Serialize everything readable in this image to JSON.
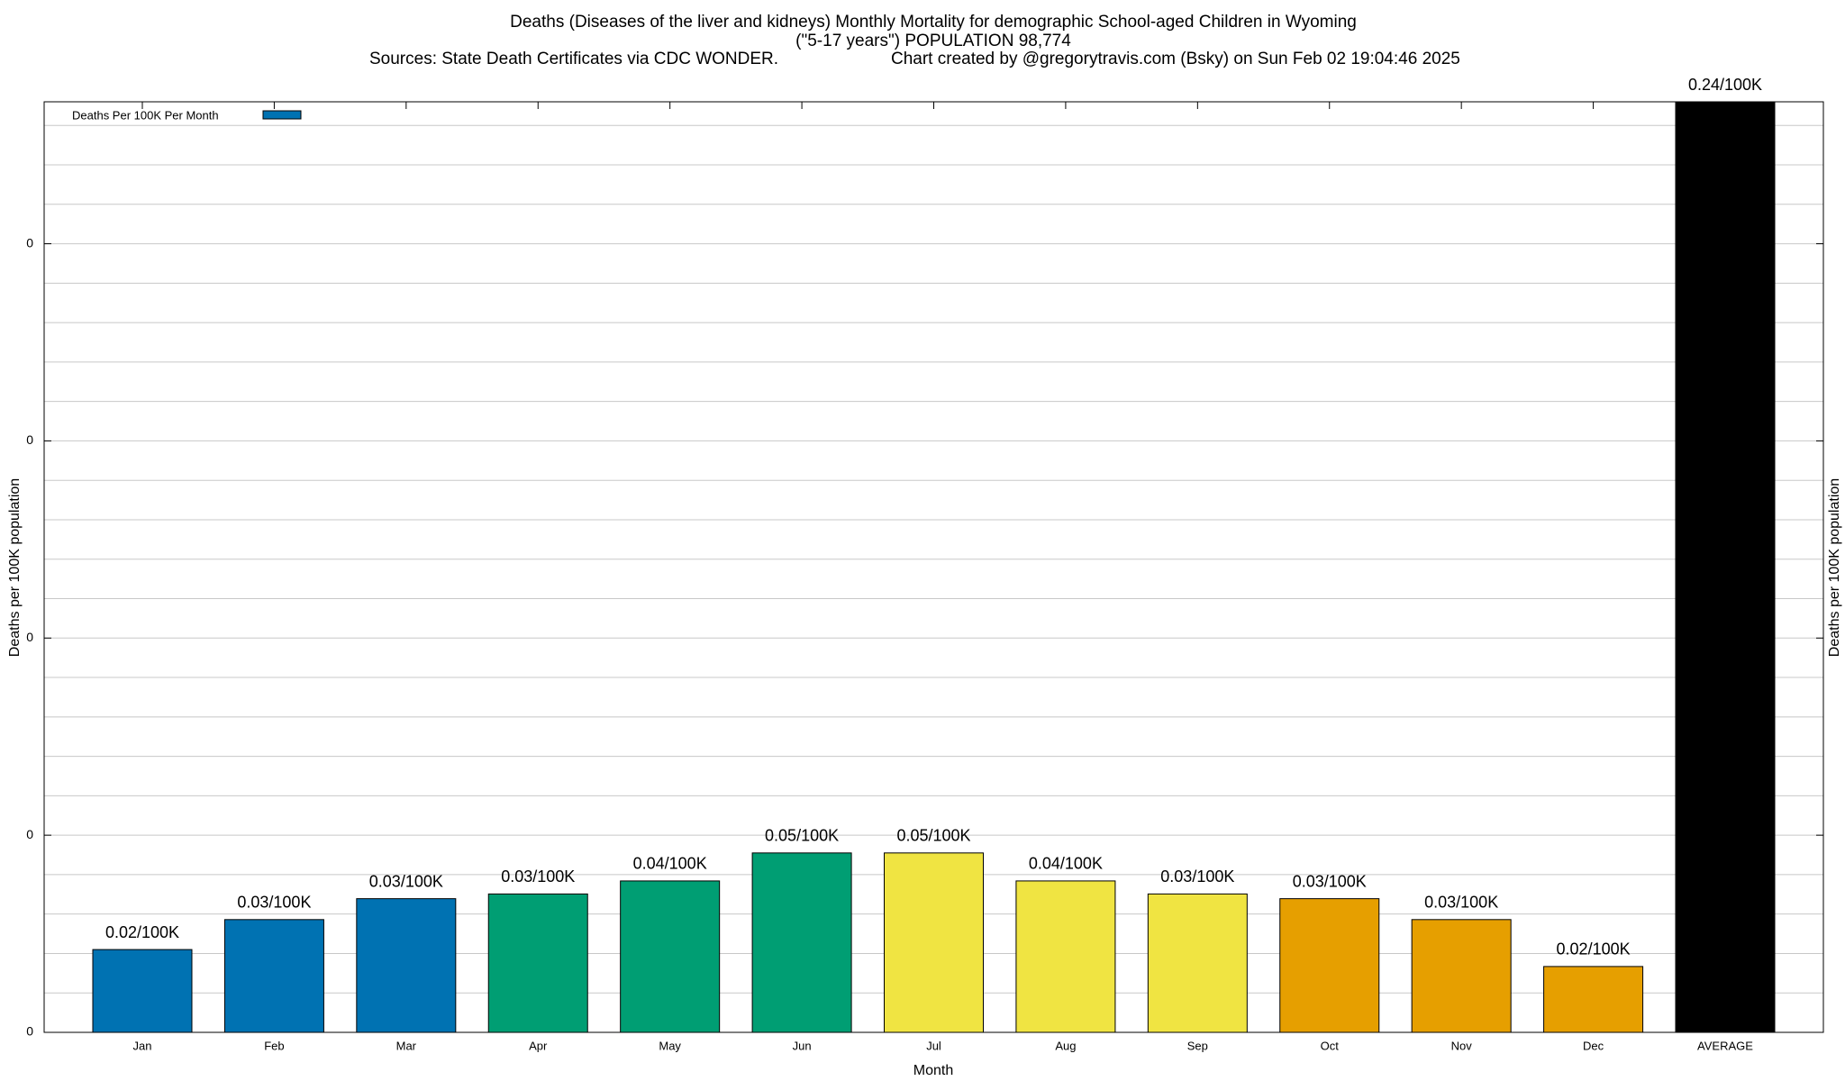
{
  "chart_data": {
    "type": "bar",
    "title": "Deaths (Diseases of the liver and kidneys) Monthly Mortality for demographic School-aged Children in Wyoming",
    "subtitle": "(\"5-17 years\") POPULATION 98,774",
    "sources": "Sources: State Death Certificates via CDC WONDER.",
    "credit": "Chart created by @gregorytravis.com (Bsky) on Sun Feb 02 19:04:46 2025",
    "x_label": "Month",
    "y_label": "Deaths per 100K population",
    "legend": "Deaths Per 100K Per Month",
    "legend_color": "#0072b2",
    "categories": [
      "Jan",
      "Feb",
      "Mar",
      "Apr",
      "May",
      "Jun",
      "Jul",
      "Aug",
      "Sep",
      "Oct",
      "Nov",
      "Dec",
      "AVERAGE"
    ],
    "values": [
      0.021,
      0.0286,
      0.0339,
      0.0351,
      0.0384,
      0.0455,
      0.0455,
      0.0384,
      0.0351,
      0.0339,
      0.0286,
      0.0167,
      0.24
    ],
    "value_labels": [
      "0.02/100K",
      "0.03/100K",
      "0.03/100K",
      "0.03/100K",
      "0.04/100K",
      "0.05/100K",
      "0.05/100K",
      "0.04/100K",
      "0.03/100K",
      "0.03/100K",
      "0.03/100K",
      "0.02/100K",
      "0.24/100K"
    ],
    "colors": [
      "#0072b2",
      "#0072b2",
      "#0072b2",
      "#009e73",
      "#009e73",
      "#009e73",
      "#f0e442",
      "#f0e442",
      "#f0e442",
      "#e69f00",
      "#e69f00",
      "#e69f00",
      "#000000"
    ],
    "ylim": [
      0,
      0.236
    ],
    "yticks": [
      {
        "value": 0,
        "label": "0"
      },
      {
        "value": 0.05,
        "label": "0"
      },
      {
        "value": 0.1,
        "label": "0"
      },
      {
        "value": 0.15,
        "label": "0"
      },
      {
        "value": 0.2,
        "label": "0"
      }
    ],
    "grid": true
  }
}
